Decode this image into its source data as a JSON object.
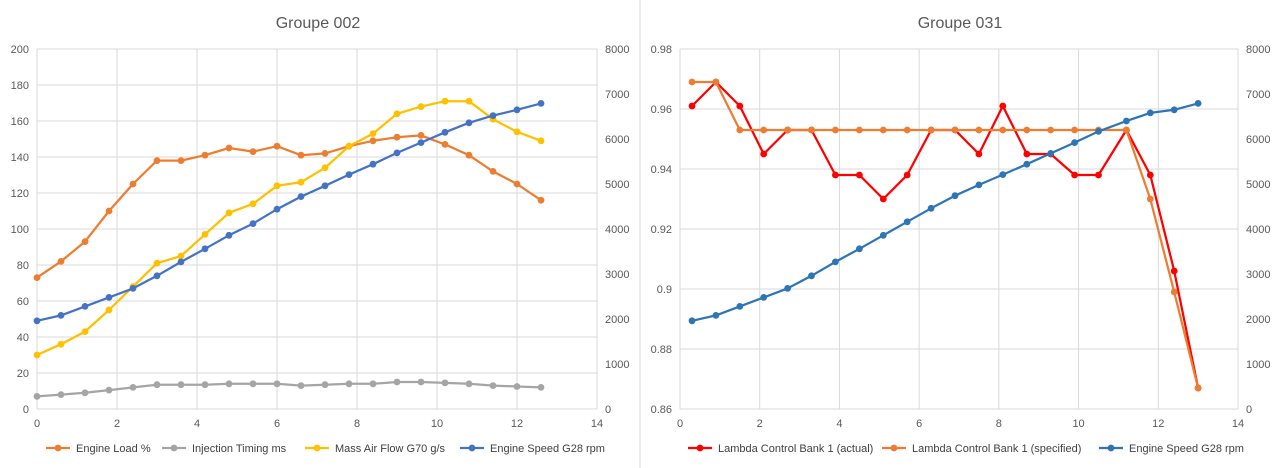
{
  "chart_data": [
    {
      "type": "line",
      "title": "Groupe 002",
      "xlim": [
        0,
        14
      ],
      "x_ticks": [
        "0",
        "2",
        "4",
        "6",
        "8",
        "10",
        "12",
        "14"
      ],
      "ylim": [
        0,
        200
      ],
      "y_ticks": [
        "0",
        "20",
        "40",
        "60",
        "80",
        "100",
        "120",
        "140",
        "160",
        "180",
        "200"
      ],
      "y2lim": [
        0,
        8000
      ],
      "y2_ticks": [
        "0",
        "1000",
        "2000",
        "3000",
        "4000",
        "5000",
        "6000",
        "7000",
        "8000"
      ],
      "legend_position": "bottom",
      "series": [
        {
          "name": "Engine Load %",
          "color": "#ED7D31",
          "axis": "left",
          "x": [
            0,
            0.6,
            1.2,
            1.8,
            2.4,
            3.0,
            3.6,
            4.2,
            4.8,
            5.4,
            6.0,
            6.6,
            7.2,
            7.8,
            8.4,
            9.0,
            9.6,
            10.2,
            10.8,
            11.4,
            12.0,
            12.6
          ],
          "y": [
            73,
            82,
            93,
            110,
            125,
            138,
            138,
            141,
            145,
            143,
            146,
            141,
            142,
            146,
            149,
            151,
            152,
            147,
            141,
            132,
            125,
            116
          ]
        },
        {
          "name": "Injection Timing ms",
          "color": "#A5A5A5",
          "axis": "left",
          "x": [
            0,
            0.6,
            1.2,
            1.8,
            2.4,
            3.0,
            3.6,
            4.2,
            4.8,
            5.4,
            6.0,
            6.6,
            7.2,
            7.8,
            8.4,
            9.0,
            9.6,
            10.2,
            10.8,
            11.4,
            12.0,
            12.6
          ],
          "y": [
            7,
            8,
            9,
            10.5,
            12,
            13.5,
            13.5,
            13.5,
            14,
            14,
            14,
            13,
            13.5,
            14,
            14,
            15,
            15,
            14.5,
            14,
            13,
            12.5,
            12
          ]
        },
        {
          "name": "Mass Air Flow G70 g/s",
          "color": "#FFC000",
          "axis": "left",
          "x": [
            0,
            0.6,
            1.2,
            1.8,
            2.4,
            3.0,
            3.6,
            4.2,
            4.8,
            5.4,
            6.0,
            6.6,
            7.2,
            7.8,
            8.4,
            9.0,
            9.6,
            10.2,
            10.8,
            11.4,
            12.0,
            12.6
          ],
          "y": [
            30,
            36,
            43,
            55,
            68,
            81,
            85,
            97,
            109,
            114,
            124,
            126,
            134,
            146,
            153,
            164,
            168,
            171,
            171,
            161,
            154,
            149
          ]
        },
        {
          "name": "Engine Speed G28 rpm",
          "color": "#4472C4",
          "axis": "right",
          "x": [
            0,
            0.6,
            1.2,
            1.8,
            2.4,
            3.0,
            3.6,
            4.2,
            4.8,
            5.4,
            6.0,
            6.6,
            7.2,
            7.8,
            8.4,
            9.0,
            9.6,
            10.2,
            10.8,
            11.4,
            12.0,
            12.6
          ],
          "y": [
            1960,
            2080,
            2280,
            2480,
            2680,
            2960,
            3270,
            3560,
            3860,
            4120,
            4440,
            4720,
            4960,
            5210,
            5440,
            5690,
            5920,
            6150,
            6360,
            6520,
            6650,
            6790
          ]
        }
      ]
    },
    {
      "type": "line",
      "title": "Groupe 031",
      "xlim": [
        0,
        14
      ],
      "x_ticks": [
        "0",
        "2",
        "4",
        "6",
        "8",
        "10",
        "12",
        "14"
      ],
      "ylim": [
        0.86,
        0.98
      ],
      "y_ticks": [
        "0.86",
        "0.88",
        "0.9",
        "0.92",
        "0.94",
        "0.96",
        "0.98"
      ],
      "y2lim": [
        0,
        8000
      ],
      "y2_ticks": [
        "0",
        "1000",
        "2000",
        "3000",
        "4000",
        "5000",
        "6000",
        "7000",
        "8000"
      ],
      "legend_position": "bottom",
      "series": [
        {
          "name": "Lambda Control Bank 1 (actual)",
          "color": "#FF0000",
          "axis": "left",
          "x": [
            0.3,
            0.9,
            1.5,
            2.1,
            2.7,
            3.3,
            3.9,
            4.5,
            5.1,
            5.7,
            6.3,
            6.9,
            7.5,
            8.1,
            8.7,
            9.3,
            9.9,
            10.5,
            11.2,
            11.8,
            12.4,
            13.0
          ],
          "y": [
            0.961,
            0.969,
            0.961,
            0.945,
            0.953,
            0.953,
            0.938,
            0.938,
            0.93,
            0.938,
            0.953,
            0.953,
            0.945,
            0.961,
            0.945,
            0.945,
            0.938,
            0.938,
            0.953,
            0.938,
            0.906,
            0.867
          ]
        },
        {
          "name": "Lambda Control Bank 1 (specified)",
          "color": "#ED7D31",
          "axis": "left",
          "x": [
            0.3,
            0.9,
            1.5,
            2.1,
            2.7,
            3.3,
            3.9,
            4.5,
            5.1,
            5.7,
            6.3,
            6.9,
            7.5,
            8.1,
            8.7,
            9.3,
            9.9,
            10.5,
            11.2,
            11.8,
            12.4,
            13.0
          ],
          "y": [
            0.969,
            0.969,
            0.953,
            0.953,
            0.953,
            0.953,
            0.953,
            0.953,
            0.953,
            0.953,
            0.953,
            0.953,
            0.953,
            0.953,
            0.953,
            0.953,
            0.953,
            0.953,
            0.953,
            0.93,
            0.899,
            0.867
          ]
        },
        {
          "name": "Engine Speed G28 rpm",
          "color": "#2E75B6",
          "axis": "right",
          "x": [
            0.3,
            0.9,
            1.5,
            2.1,
            2.7,
            3.3,
            3.9,
            4.5,
            5.1,
            5.7,
            6.3,
            6.9,
            7.5,
            8.1,
            8.7,
            9.3,
            9.9,
            10.5,
            11.2,
            11.8,
            12.4,
            13.0
          ],
          "y": [
            1960,
            2080,
            2280,
            2480,
            2680,
            2960,
            3270,
            3560,
            3860,
            4160,
            4460,
            4740,
            4980,
            5210,
            5440,
            5680,
            5920,
            6170,
            6400,
            6580,
            6650,
            6790
          ]
        }
      ]
    }
  ]
}
